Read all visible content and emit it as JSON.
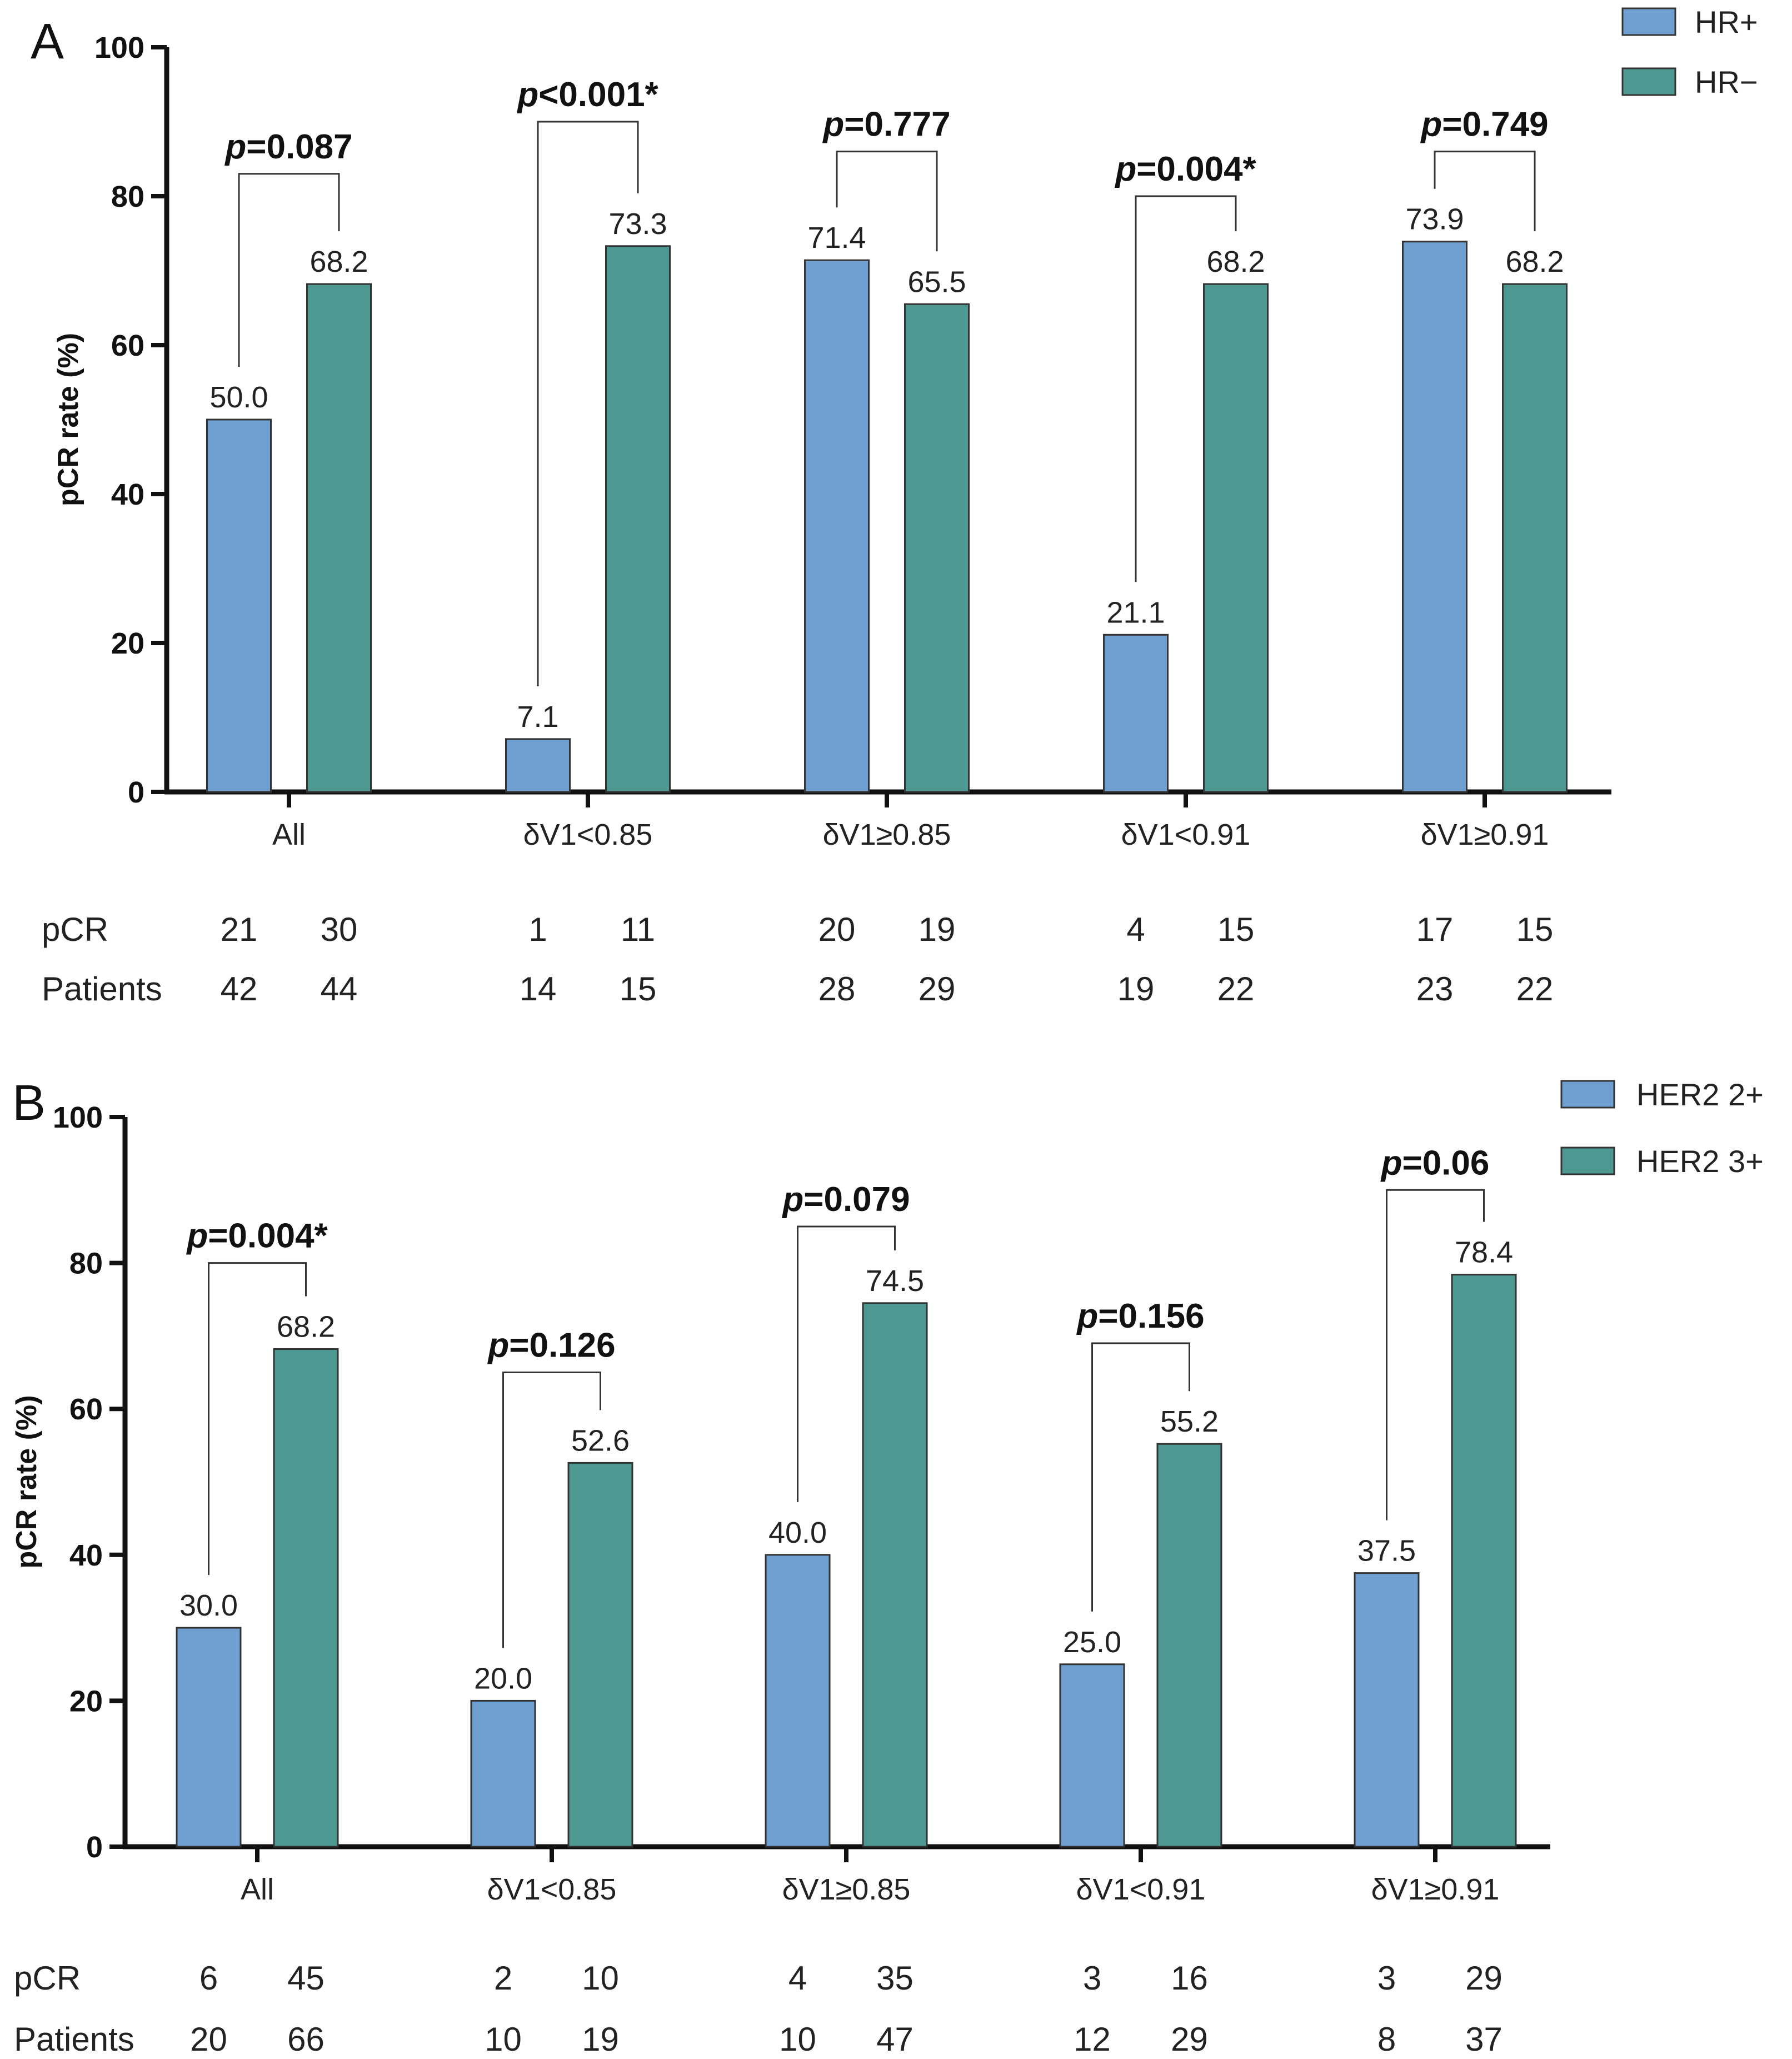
{
  "colors": {
    "series1": "#6f9fd0",
    "series2": "#4d9890",
    "axis": "#111111",
    "bar_edge": "#333333"
  },
  "chart_data": [
    {
      "panel": "A",
      "type": "bar",
      "ylabel": "pCR rate (%)",
      "ylim": [
        0,
        100
      ],
      "yticks": [
        0,
        20,
        40,
        60,
        80,
        100
      ],
      "categories": [
        "All",
        "δV1<0.85",
        "δV1≥0.85",
        "δV1<0.91",
        "δV1≥0.91"
      ],
      "series": [
        {
          "name": "HR+",
          "values": [
            50.0,
            7.1,
            71.4,
            21.1,
            73.9
          ],
          "value_labels": [
            "50.0",
            "7.1",
            "71.4",
            "21.1",
            "73.9"
          ]
        },
        {
          "name": "HR−",
          "values": [
            68.2,
            73.3,
            65.5,
            68.2,
            68.2
          ],
          "value_labels": [
            "68.2",
            "73.3",
            "65.5",
            "68.2",
            "68.2"
          ]
        }
      ],
      "pvalues": [
        {
          "p": "p",
          "rest": "=0.087",
          "bracket_top": 83
        },
        {
          "p": "p",
          "rest": "<0.001*",
          "bracket_top": 90
        },
        {
          "p": "p",
          "rest": "=0.777",
          "bracket_top": 86
        },
        {
          "p": "p",
          "rest": "=0.004*",
          "bracket_top": 80
        },
        {
          "p": "p",
          "rest": "=0.749",
          "bracket_top": 86
        }
      ],
      "table": {
        "row_labels": [
          "pCR",
          "Patients"
        ],
        "pcr": [
          [
            "21",
            "30"
          ],
          [
            "1",
            "11"
          ],
          [
            "20",
            "19"
          ],
          [
            "4",
            "15"
          ],
          [
            "17",
            "15"
          ]
        ],
        "patients": [
          [
            "42",
            "44"
          ],
          [
            "14",
            "15"
          ],
          [
            "28",
            "29"
          ],
          [
            "19",
            "22"
          ],
          [
            "23",
            "22"
          ]
        ]
      },
      "legend": [
        "HR+",
        "HR−"
      ]
    },
    {
      "panel": "B",
      "type": "bar",
      "ylabel": "pCR rate (%)",
      "ylim": [
        0,
        100
      ],
      "yticks": [
        0,
        20,
        40,
        60,
        80,
        100
      ],
      "categories": [
        "All",
        "δV1<0.85",
        "δV1≥0.85",
        "δV1<0.91",
        "δV1≥0.91"
      ],
      "series": [
        {
          "name": "HER2 2+",
          "values": [
            30.0,
            20.0,
            40.0,
            25.0,
            37.5
          ],
          "value_labels": [
            "30.0",
            "20.0",
            "40.0",
            "25.0",
            "37.5"
          ]
        },
        {
          "name": "HER2 3+",
          "values": [
            68.2,
            52.6,
            74.5,
            55.2,
            78.4
          ],
          "value_labels": [
            "68.2",
            "52.6",
            "74.5",
            "55.2",
            "78.4"
          ]
        }
      ],
      "pvalues": [
        {
          "p": "p",
          "rest": "=0.004*",
          "bracket_top": 80
        },
        {
          "p": "p",
          "rest": "=0.126",
          "bracket_top": 65
        },
        {
          "p": "p",
          "rest": "=0.079",
          "bracket_top": 85
        },
        {
          "p": "p",
          "rest": "=0.156",
          "bracket_top": 69
        },
        {
          "p": "p",
          "rest": "=0.06",
          "bracket_top": 90
        }
      ],
      "table": {
        "row_labels": [
          "pCR",
          "Patients"
        ],
        "pcr": [
          [
            "6",
            "45"
          ],
          [
            "2",
            "10"
          ],
          [
            "4",
            "35"
          ],
          [
            "3",
            "16"
          ],
          [
            "3",
            "29"
          ]
        ],
        "patients": [
          [
            "20",
            "66"
          ],
          [
            "10",
            "19"
          ],
          [
            "10",
            "47"
          ],
          [
            "12",
            "29"
          ],
          [
            "8",
            "37"
          ]
        ]
      },
      "legend": [
        "HER2 2+",
        "HER2 3+"
      ]
    }
  ]
}
